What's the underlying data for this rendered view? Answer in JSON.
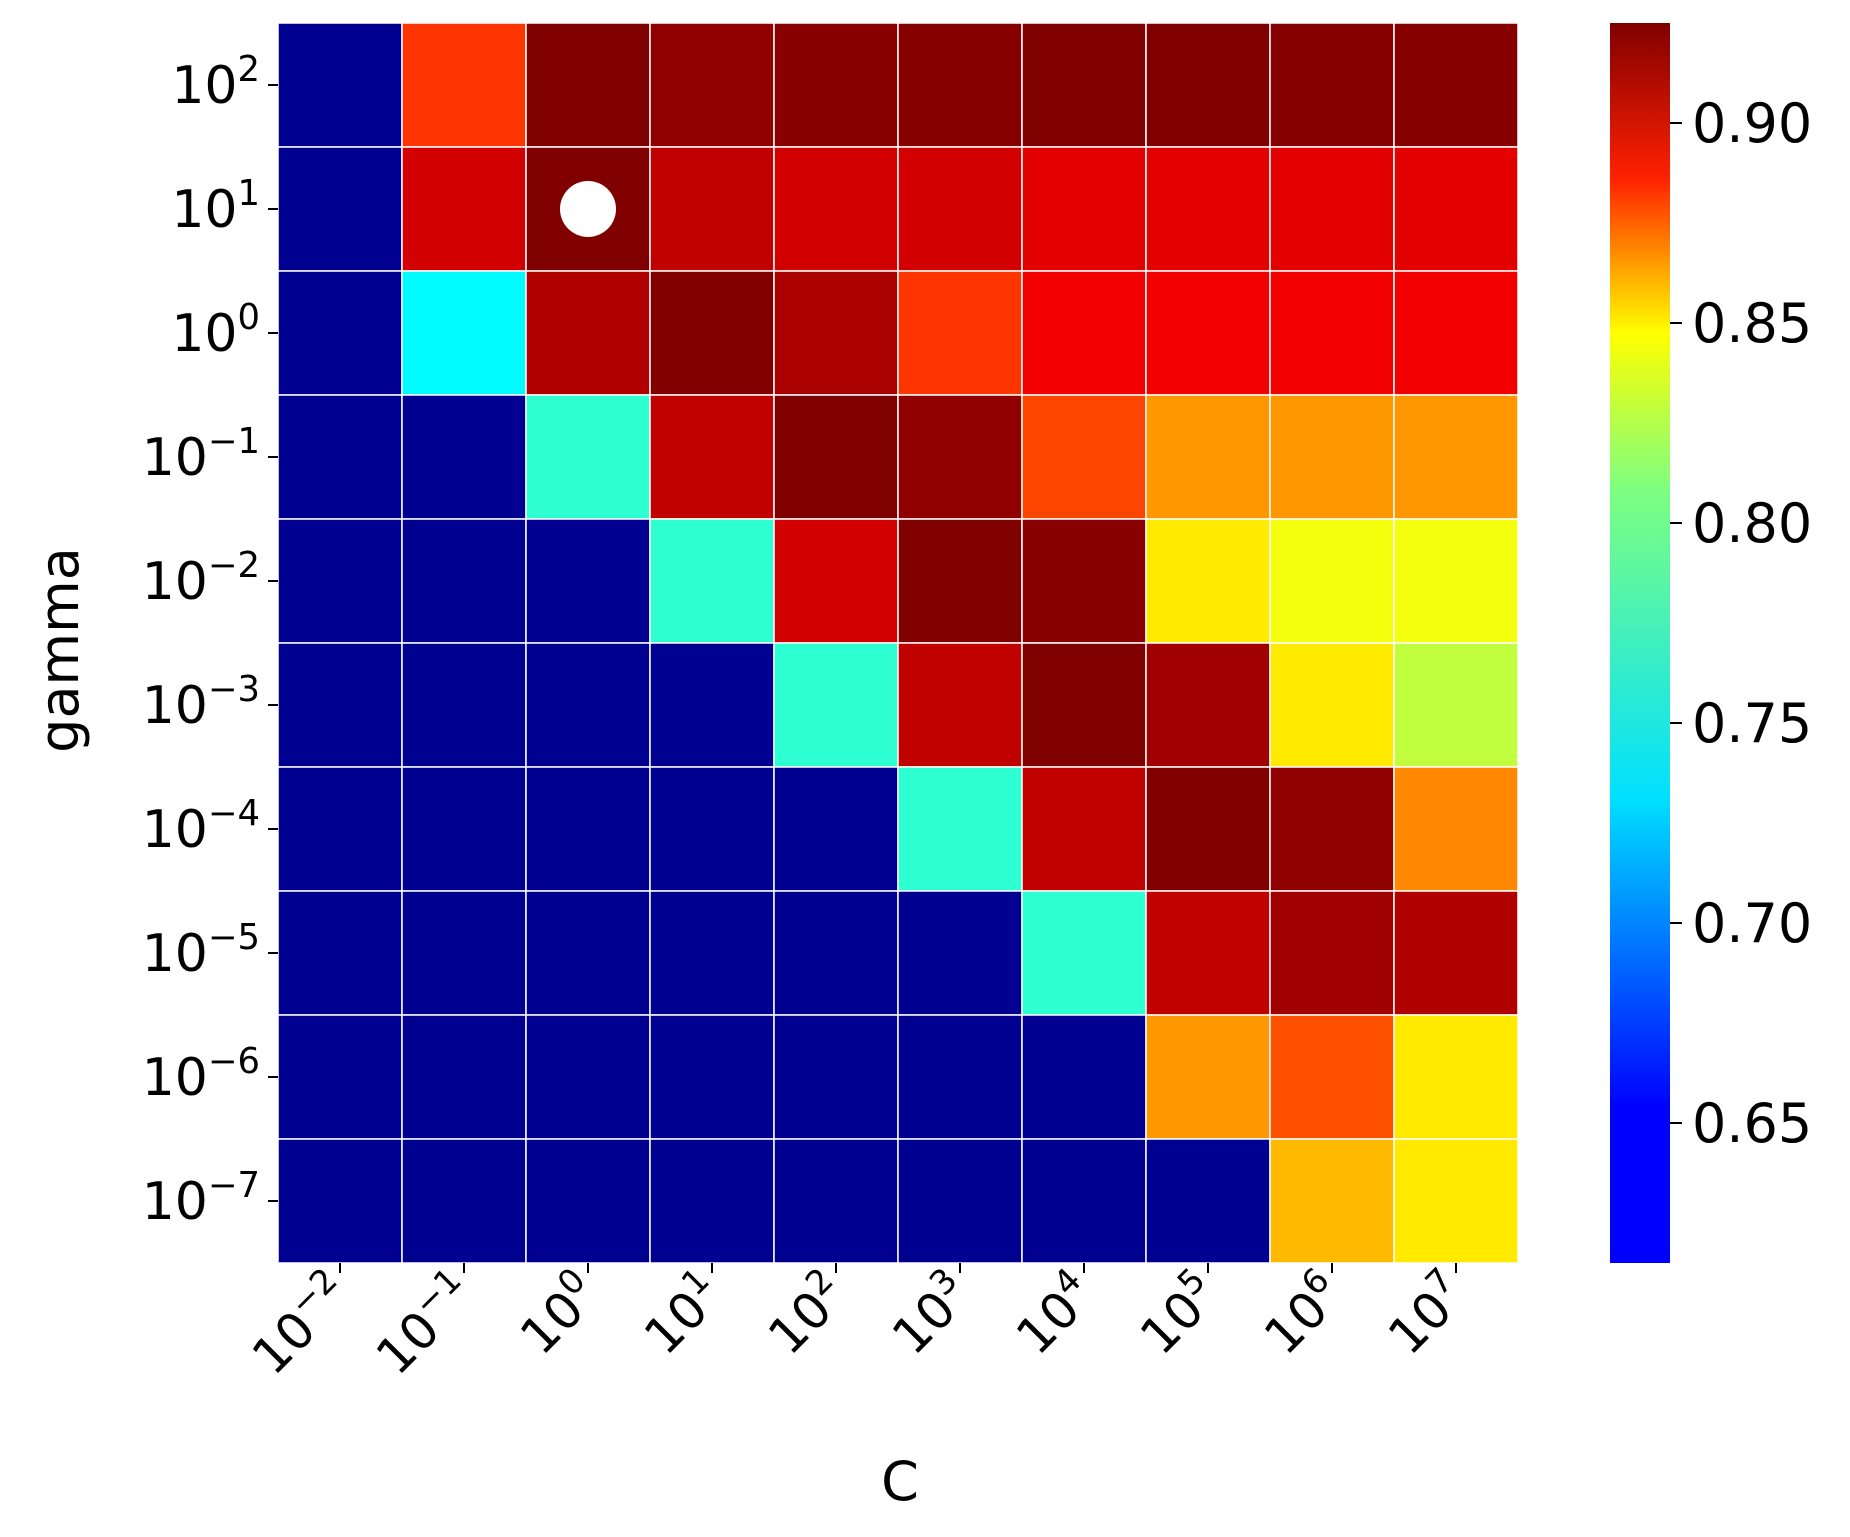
{
  "chart_data": {
    "type": "heatmap",
    "xlabel": "C",
    "ylabel": "gamma",
    "x_categories": [
      {
        "base": "10",
        "exp": "−2"
      },
      {
        "base": "10",
        "exp": "−1"
      },
      {
        "base": "10",
        "exp": "0"
      },
      {
        "base": "10",
        "exp": "1"
      },
      {
        "base": "10",
        "exp": "2"
      },
      {
        "base": "10",
        "exp": "3"
      },
      {
        "base": "10",
        "exp": "4"
      },
      {
        "base": "10",
        "exp": "5"
      },
      {
        "base": "10",
        "exp": "6"
      },
      {
        "base": "10",
        "exp": "7"
      }
    ],
    "y_categories": [
      {
        "base": "10",
        "exp": "2"
      },
      {
        "base": "10",
        "exp": "1"
      },
      {
        "base": "10",
        "exp": "0"
      },
      {
        "base": "10",
        "exp": "−1"
      },
      {
        "base": "10",
        "exp": "−2"
      },
      {
        "base": "10",
        "exp": "−3"
      },
      {
        "base": "10",
        "exp": "−4"
      },
      {
        "base": "10",
        "exp": "−5"
      },
      {
        "base": "10",
        "exp": "−6"
      },
      {
        "base": "10",
        "exp": "−7"
      }
    ],
    "values": [
      [
        0.62,
        0.87,
        0.925,
        0.92,
        0.922,
        0.923,
        0.925,
        0.925,
        0.923,
        0.923
      ],
      [
        0.62,
        0.9,
        0.925,
        0.905,
        0.9,
        0.9,
        0.895,
        0.895,
        0.895,
        0.895
      ],
      [
        0.62,
        0.73,
        0.91,
        0.925,
        0.912,
        0.87,
        0.89,
        0.89,
        0.89,
        0.89
      ],
      [
        0.62,
        0.62,
        0.745,
        0.905,
        0.925,
        0.92,
        0.865,
        0.84,
        0.84,
        0.84
      ],
      [
        0.62,
        0.62,
        0.62,
        0.745,
        0.9,
        0.925,
        0.922,
        0.815,
        0.805,
        0.805
      ],
      [
        0.62,
        0.62,
        0.62,
        0.62,
        0.745,
        0.905,
        0.925,
        0.915,
        0.815,
        0.79
      ],
      [
        0.62,
        0.62,
        0.62,
        0.62,
        0.62,
        0.745,
        0.905,
        0.925,
        0.92,
        0.845
      ],
      [
        0.62,
        0.62,
        0.62,
        0.62,
        0.62,
        0.62,
        0.745,
        0.905,
        0.915,
        0.91
      ],
      [
        0.62,
        0.62,
        0.62,
        0.62,
        0.62,
        0.62,
        0.62,
        0.84,
        0.862,
        0.815
      ],
      [
        0.62,
        0.62,
        0.62,
        0.62,
        0.62,
        0.62,
        0.62,
        0.62,
        0.83,
        0.815
      ]
    ],
    "marker": {
      "row": 1,
      "col": 2,
      "color": "#ffffff"
    },
    "colorbar": {
      "colormap": "jet",
      "vmin": 0.615,
      "vmax": 0.925,
      "ticks": [
        "0.65",
        "0.70",
        "0.75",
        "0.80",
        "0.85",
        "0.90"
      ]
    },
    "cell_gridline_color": "#ffffff"
  }
}
